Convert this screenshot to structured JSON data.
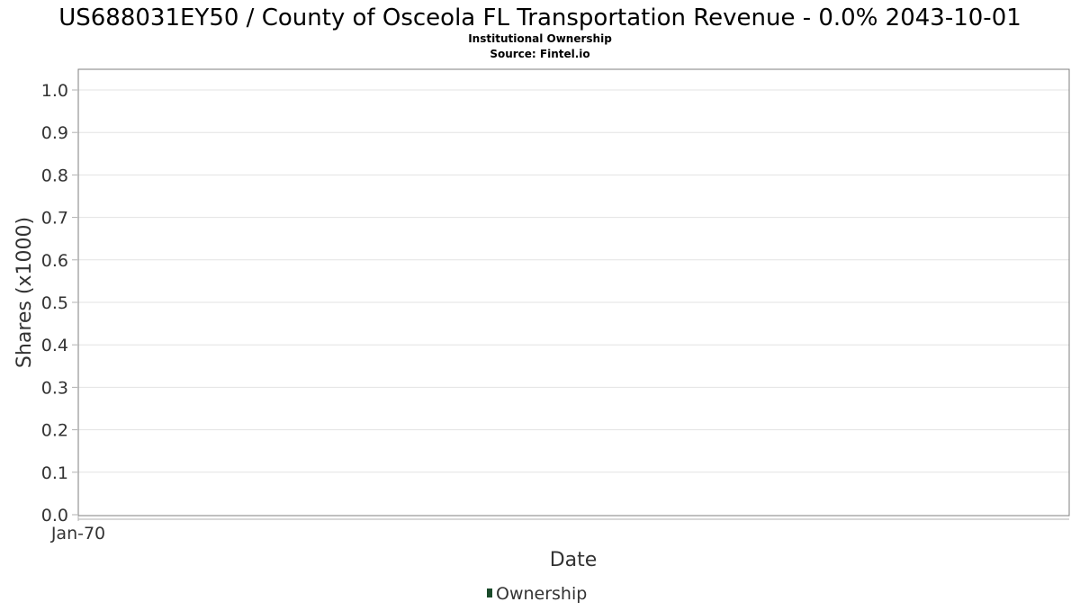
{
  "chart_data": {
    "type": "line",
    "title": "US688031EY50 / County of Osceola FL Transportation Revenue - 0.0% 2043-10-01",
    "subtitle": "Institutional Ownership",
    "source": "Source: Fintel.io",
    "xlabel": "Date",
    "ylabel": "Shares (x1000)",
    "ylim": [
      0.0,
      1.0
    ],
    "y_ticks": [
      "0.0",
      "0.1",
      "0.2",
      "0.3",
      "0.4",
      "0.5",
      "0.6",
      "0.7",
      "0.8",
      "0.9",
      "1.0"
    ],
    "x_ticks": [
      "Jan-70"
    ],
    "grid": true,
    "legend_position": "bottom-center",
    "series": [
      {
        "name": "Ownership",
        "color": "#1a4a2a",
        "x": [],
        "values": []
      }
    ]
  }
}
